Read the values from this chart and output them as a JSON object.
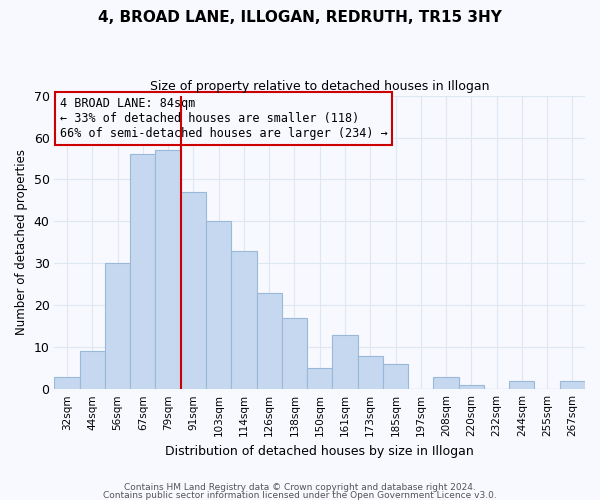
{
  "title": "4, BROAD LANE, ILLOGAN, REDRUTH, TR15 3HY",
  "subtitle": "Size of property relative to detached houses in Illogan",
  "xlabel": "Distribution of detached houses by size in Illogan",
  "ylabel": "Number of detached properties",
  "bar_color": "#c5d8f0",
  "bar_edge_color": "#9ab8d8",
  "categories": [
    "32sqm",
    "44sqm",
    "56sqm",
    "67sqm",
    "79sqm",
    "91sqm",
    "103sqm",
    "114sqm",
    "126sqm",
    "138sqm",
    "150sqm",
    "161sqm",
    "173sqm",
    "185sqm",
    "197sqm",
    "208sqm",
    "220sqm",
    "232sqm",
    "244sqm",
    "255sqm",
    "267sqm"
  ],
  "values": [
    3,
    9,
    30,
    56,
    57,
    47,
    40,
    33,
    23,
    17,
    5,
    13,
    8,
    6,
    0,
    3,
    1,
    0,
    2,
    0,
    2
  ],
  "ylim": [
    0,
    70
  ],
  "yticks": [
    0,
    10,
    20,
    30,
    40,
    50,
    60,
    70
  ],
  "marker_bin_index": 4.5,
  "marker_color": "#cc0000",
  "annotation_title": "4 BROAD LANE: 84sqm",
  "annotation_line1": "← 33% of detached houses are smaller (118)",
  "annotation_line2": "66% of semi-detached houses are larger (234) →",
  "footnote1": "Contains HM Land Registry data © Crown copyright and database right 2024.",
  "footnote2": "Contains public sector information licensed under the Open Government Licence v3.0.",
  "bg_color": "#f8f8ff",
  "grid_color": "#dde8f0"
}
